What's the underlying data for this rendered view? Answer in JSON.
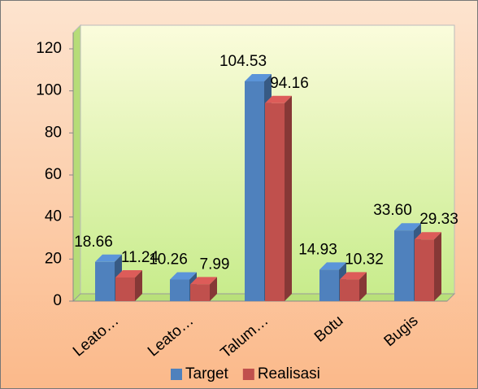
{
  "chart_data": {
    "type": "bar3d",
    "categories": [
      "Leato…",
      "Leato…",
      "Talum…",
      "Botu",
      "Bugis"
    ],
    "series": [
      {
        "name": "Target",
        "color": "#4f81bd",
        "values": [
          18.66,
          10.26,
          104.53,
          14.93,
          33.6
        ],
        "value_labels": [
          "18.66",
          "10.26",
          "104.53",
          "14.93",
          "33.60"
        ]
      },
      {
        "name": "Realisasi",
        "color": "#c0504d",
        "values": [
          11.24,
          7.99,
          94.16,
          10.32,
          29.33
        ],
        "value_labels": [
          "11.24",
          "7.99",
          "94.16",
          "10.32",
          "29.33"
        ]
      }
    ],
    "ylim": [
      0,
      120
    ],
    "yticks": [
      0,
      20,
      40,
      60,
      80,
      100,
      120
    ],
    "grid": false,
    "legend": "bottom"
  }
}
